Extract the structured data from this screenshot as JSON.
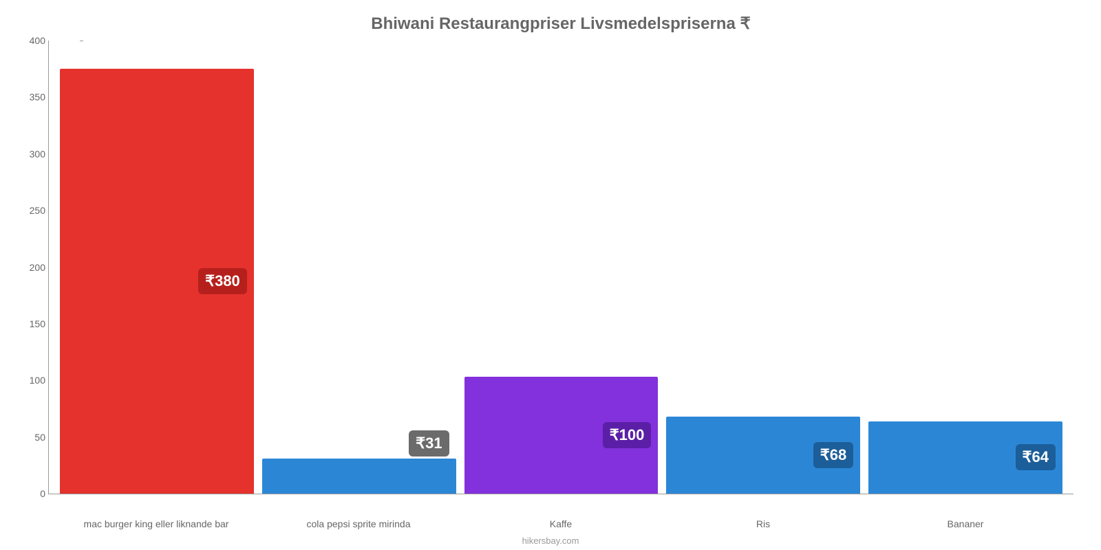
{
  "chart": {
    "type": "bar",
    "title": "Bhiwani Restaurangpriser Livsmedelspriserna ₹",
    "title_color": "#666666",
    "title_fontsize": 24,
    "background_color": "#ffffff",
    "axis_color": "#999999",
    "tick_label_color": "#666666",
    "tick_label_fontsize": 14,
    "ylim": [
      0,
      400
    ],
    "ytick_step": 50,
    "yticks": [
      {
        "value": 0,
        "label": "0"
      },
      {
        "value": 50,
        "label": "50"
      },
      {
        "value": 100,
        "label": "100"
      },
      {
        "value": 150,
        "label": "150"
      },
      {
        "value": 200,
        "label": "200"
      },
      {
        "value": 250,
        "label": "250"
      },
      {
        "value": 300,
        "label": "300"
      },
      {
        "value": 350,
        "label": "350"
      },
      {
        "value": 400,
        "label": "400"
      }
    ],
    "bar_width": 0.95,
    "datalabel_fontsize": 22,
    "datalabel_text_color": "#ffffff",
    "datalabel_border_radius": 6,
    "series": [
      {
        "category": "mac burger king eller liknande bar",
        "value": 375,
        "color": "#e5322d",
        "label": "₹380",
        "label_bg": "#b6201c",
        "label_pos": "inside"
      },
      {
        "category": "cola pepsi sprite mirinda",
        "value": 31,
        "color": "#2b87d6",
        "label": "₹31",
        "label_bg": "#6b6b6b",
        "label_pos": "above"
      },
      {
        "category": "Kaffe",
        "value": 103,
        "color": "#8231dc",
        "label": "₹100",
        "label_bg": "#5a1fa6",
        "label_pos": "inside"
      },
      {
        "category": "Ris",
        "value": 68,
        "color": "#2b87d6",
        "label": "₹68",
        "label_bg": "#1c5e99",
        "label_pos": "inside"
      },
      {
        "category": "Bananer",
        "value": 64,
        "color": "#2b87d6",
        "label": "₹64",
        "label_bg": "#1c5e99",
        "label_pos": "inside"
      }
    ],
    "footer": "hikersbay.com",
    "footer_color": "#999999",
    "footer_fontsize": 13
  }
}
